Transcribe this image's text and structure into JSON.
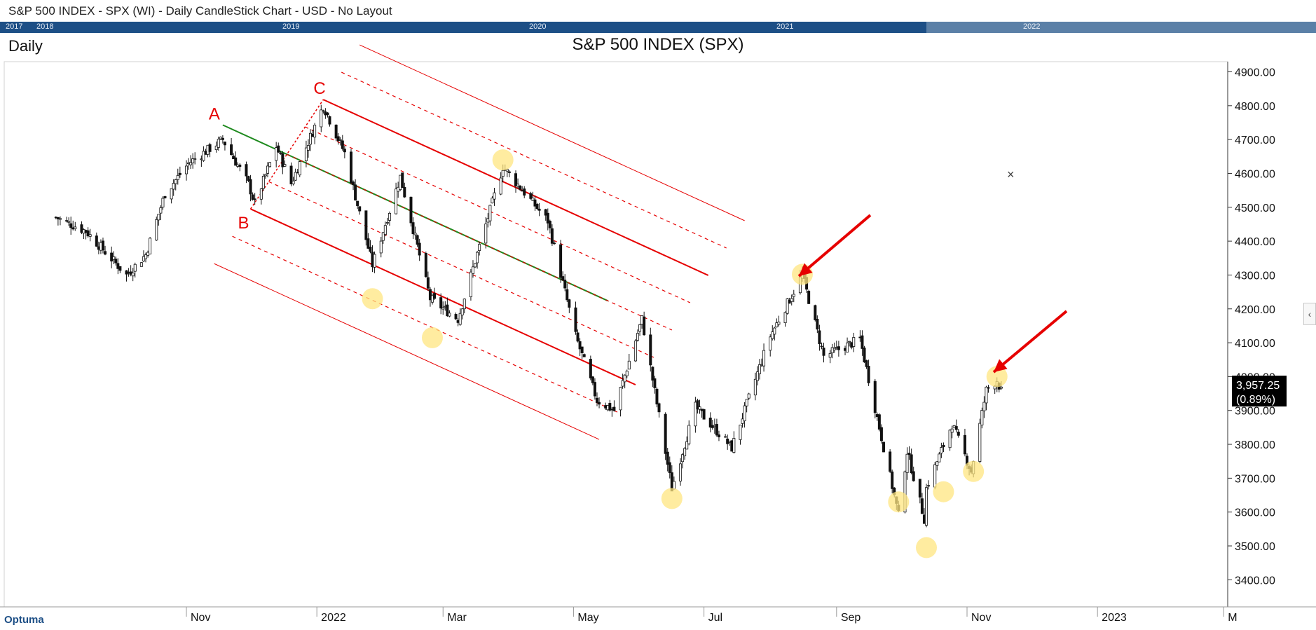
{
  "window": {
    "title": "S&P 500 INDEX - SPX (WI) - Daily CandleStick Chart - USD - No Layout"
  },
  "navigator": {
    "years": [
      "2017",
      "2018",
      "2019",
      "2020",
      "2021",
      "2022"
    ]
  },
  "period_label": "Daily",
  "logo_text": "Optuma",
  "expander_glyph": "‹",
  "close_glyph": "×",
  "chart_data": {
    "type": "candlestick",
    "title": "S&P 500 INDEX (SPX)",
    "x_tick_labels": [
      "Nov",
      "2022",
      "Mar",
      "May",
      "Jul",
      "Sep",
      "Nov",
      "2023",
      "M"
    ],
    "y_ticks": [
      3400,
      3500,
      3600,
      3700,
      3800,
      3900,
      4000,
      4100,
      4200,
      4300,
      4400,
      4500,
      4600,
      4700,
      4800,
      4900
    ],
    "y_tick_labels": [
      "3400.00",
      "3500.00",
      "3600.00",
      "3700.00",
      "3800.00",
      "3900.00",
      "4000.00",
      "4100.00",
      "4200.00",
      "4300.00",
      "4400.00",
      "4500.00",
      "4600.00",
      "4700.00",
      "4800.00",
      "4900.00"
    ],
    "ylim": [
      3320,
      4930
    ],
    "last_price_label": "3,957.25",
    "last_change_label": "(0.89%)",
    "last_price": 3957.25,
    "close_path": [
      [
        "2021-09-01",
        4470
      ],
      [
        "2021-09-15",
        4430
      ],
      [
        "2021-10-04",
        4300
      ],
      [
        "2021-10-13",
        4360
      ],
      [
        "2021-10-22",
        4540
      ],
      [
        "2021-11-02",
        4630
      ],
      [
        "2021-11-18",
        4700
      ],
      [
        "2021-11-30",
        4570
      ],
      [
        "2021-12-03",
        4510
      ],
      [
        "2021-12-13",
        4680
      ],
      [
        "2021-12-20",
        4570
      ],
      [
        "2022-01-04",
        4800
      ],
      [
        "2022-01-14",
        4660
      ],
      [
        "2022-01-27",
        4330
      ],
      [
        "2022-02-09",
        4590
      ],
      [
        "2022-02-23",
        4230
      ],
      [
        "2022-03-08",
        4170
      ],
      [
        "2022-03-29",
        4620
      ],
      [
        "2022-04-19",
        4460
      ],
      [
        "2022-05-02",
        4120
      ],
      [
        "2022-05-12",
        3930
      ],
      [
        "2022-05-20",
        3900
      ],
      [
        "2022-06-02",
        4170
      ],
      [
        "2022-06-16",
        3670
      ],
      [
        "2022-06-27",
        3910
      ],
      [
        "2022-07-14",
        3790
      ],
      [
        "2022-08-01",
        4120
      ],
      [
        "2022-08-16",
        4300
      ],
      [
        "2022-08-26",
        4060
      ],
      [
        "2022-09-12",
        4110
      ],
      [
        "2022-09-30",
        3590
      ],
      [
        "2022-10-04",
        3780
      ],
      [
        "2022-10-12",
        3580
      ],
      [
        "2022-10-13",
        3670
      ],
      [
        "2022-10-25",
        3860
      ],
      [
        "2022-11-03",
        3720
      ],
      [
        "2022-11-10",
        3960
      ],
      [
        "2022-11-15",
        3990
      ],
      [
        "2022-11-17",
        3957
      ]
    ],
    "annotations": {
      "pivot_labels": [
        "A",
        "B",
        "C"
      ],
      "pivots": {
        "A": {
          "date": "2021-11-18",
          "price": 4743
        },
        "B": {
          "date": "2021-12-01",
          "price": 4495
        },
        "C": {
          "date": "2022-01-04",
          "price": 4818
        }
      },
      "median_line_color": "#1e8a1e",
      "channel_line_color": "#e60000",
      "highlight_color": "#ffe680",
      "arrow_color": "#e60000",
      "arrows": 2
    }
  }
}
